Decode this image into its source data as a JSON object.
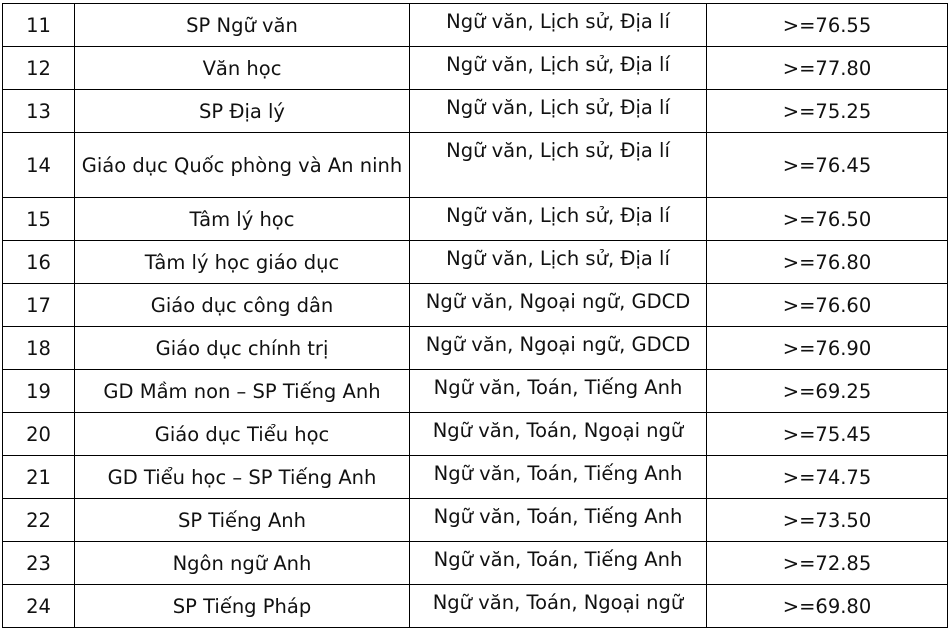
{
  "rows": [
    {
      "stt": "11",
      "nganh": "SP Ngữ văn",
      "to_hop": "Ngữ văn, Lịch sử, Địa lí",
      "diem": ">=76.55"
    },
    {
      "stt": "12",
      "nganh": "Văn học",
      "to_hop": "Ngữ văn, Lịch sử, Địa lí",
      "diem": ">=77.80"
    },
    {
      "stt": "13",
      "nganh": "SP Địa lý",
      "to_hop": "Ngữ văn, Lịch sử, Địa lí",
      "diem": ">=75.25"
    },
    {
      "stt": "14",
      "nganh": "Giáo dục Quốc phòng và An ninh",
      "to_hop": "Ngữ văn, Lịch sử, Địa lí",
      "diem": ">=76.45"
    },
    {
      "stt": "15",
      "nganh": "Tâm lý học",
      "to_hop": "Ngữ văn, Lịch sử, Địa lí",
      "diem": ">=76.50"
    },
    {
      "stt": "16",
      "nganh": "Tâm lý học giáo dục",
      "to_hop": "Ngữ văn, Lịch sử, Địa lí",
      "diem": ">=76.80"
    },
    {
      "stt": "17",
      "nganh": "Giáo dục công dân",
      "to_hop": "Ngữ văn, Ngoại ngữ, GDCD",
      "diem": ">=76.60"
    },
    {
      "stt": "18",
      "nganh": "Giáo dục chính trị",
      "to_hop": "Ngữ văn, Ngoại ngữ, GDCD",
      "diem": ">=76.90"
    },
    {
      "stt": "19",
      "nganh": "GD Mầm non – SP Tiếng Anh",
      "to_hop": "Ngữ văn, Toán, Tiếng Anh",
      "diem": ">=69.25"
    },
    {
      "stt": "20",
      "nganh": "Giáo dục Tiểu học",
      "to_hop": "Ngữ văn, Toán, Ngoại ngữ",
      "diem": ">=75.45"
    },
    {
      "stt": "21",
      "nganh": "GD Tiểu học – SP Tiếng Anh",
      "to_hop": "Ngữ văn, Toán, Tiếng Anh",
      "diem": ">=74.75"
    },
    {
      "stt": "22",
      "nganh": "SP Tiếng Anh",
      "to_hop": "Ngữ văn, Toán, Tiếng Anh",
      "diem": ">=73.50"
    },
    {
      "stt": "23",
      "nganh": "Ngôn ngữ Anh",
      "to_hop": "Ngữ văn, Toán, Tiếng Anh",
      "diem": ">=72.85"
    },
    {
      "stt": "24",
      "nganh": "SP Tiếng Pháp",
      "to_hop": "Ngữ văn, Toán, Ngoại ngữ",
      "diem": ">=69.80"
    }
  ]
}
